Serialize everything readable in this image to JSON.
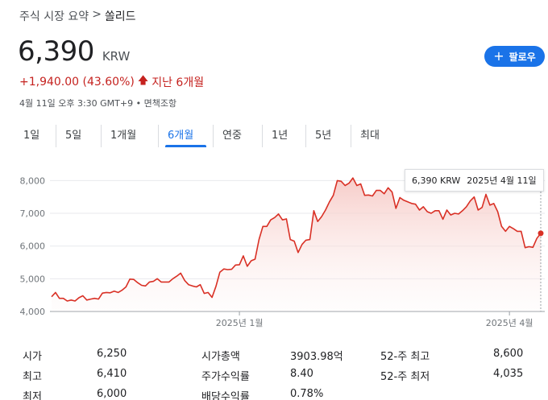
{
  "breadcrumb": {
    "parent": "주식 시장 요약",
    "separator": ">",
    "current": "쏠리드"
  },
  "price": {
    "value": "6,390",
    "currency": "KRW"
  },
  "follow_button": {
    "label": "팔로우",
    "icon": "plus-icon"
  },
  "change": {
    "amount": "+1,940.00 (43.60%)",
    "arrow": "arrow-up-icon",
    "period": "지난 6개월"
  },
  "timestamp": "4월 11일 오후 3:30 GMT+9 • 면책조항",
  "tabs": [
    {
      "label": "1일",
      "active": false
    },
    {
      "label": "5일",
      "active": false
    },
    {
      "label": "1개월",
      "active": false
    },
    {
      "label": "6개월",
      "active": true
    },
    {
      "label": "연중",
      "active": false
    },
    {
      "label": "1년",
      "active": false
    },
    {
      "label": "5년",
      "active": false
    },
    {
      "label": "최대",
      "active": false
    }
  ],
  "tooltip": {
    "price": "6,390 KRW",
    "date": "2025년 4월 11일"
  },
  "colors": {
    "line": "#d93025",
    "accent": "#1a73e8",
    "fill_top": "#f6c7c3"
  },
  "chart_data": {
    "type": "area",
    "ylim": [
      4000,
      8600
    ],
    "y_ticks": [
      "4,000",
      "5,000",
      "6,000",
      "7,000",
      "8,000"
    ],
    "x_tick_labels": [
      "2025년 1월",
      "2025년 4월"
    ],
    "grid": true,
    "series": [
      {
        "values": [
          4450,
          4580,
          4400,
          4400,
          4320,
          4350,
          4320,
          4420,
          4480,
          4350,
          4380,
          4400,
          4380,
          4560,
          4580,
          4570,
          4620,
          4580,
          4650,
          4750,
          4990,
          4980,
          4880,
          4800,
          4780,
          4900,
          4920,
          5000,
          4900,
          4900,
          4900,
          5000,
          5080,
          5170,
          4950,
          4820,
          4780,
          4750,
          4820,
          4550,
          4580,
          4430,
          4770,
          5200,
          5300,
          5280,
          5290,
          5420,
          5430,
          5700,
          5380,
          5550,
          5600,
          6200,
          6600,
          6600,
          6800,
          6870,
          6980,
          6800,
          6830,
          6200,
          6150,
          5800,
          6050,
          6180,
          6200,
          7080,
          6750,
          6900,
          7100,
          7350,
          7550,
          8000,
          7980,
          7850,
          7920,
          8080,
          7850,
          7900,
          7550,
          7560,
          7530,
          7700,
          7700,
          7600,
          7780,
          7650,
          7150,
          7480,
          7400,
          7350,
          7300,
          7280,
          7100,
          7200,
          7050,
          7000,
          7080,
          7080,
          6820,
          7100,
          6950,
          7000,
          6980,
          7080,
          7200,
          7380,
          7500,
          7100,
          7180,
          7580,
          7250,
          7300,
          7050,
          6600,
          6450,
          6600,
          6530,
          6450,
          6450,
          5950,
          5980,
          5960,
          6230,
          6390
        ]
      }
    ]
  },
  "stats": [
    [
      {
        "label": "시가",
        "value": "6,250"
      },
      {
        "label": "최고",
        "value": "6,410"
      },
      {
        "label": "최저",
        "value": "6,000"
      }
    ],
    [
      {
        "label": "시가총액",
        "value": "3903.98억"
      },
      {
        "label": "주가수익률",
        "value": "8.40"
      },
      {
        "label": "배당수익률",
        "value": "0.78%"
      }
    ],
    [
      {
        "label": "52-주 최고",
        "value": "8,600"
      },
      {
        "label": "52-주 최저",
        "value": "4,035"
      }
    ]
  ]
}
